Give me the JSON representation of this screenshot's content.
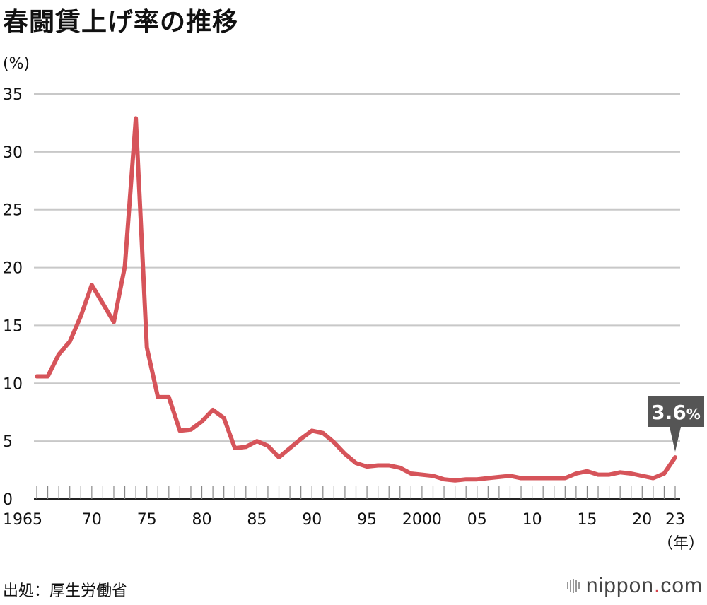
{
  "title": "春闘賃上げ率の推移",
  "y_unit": "(%)",
  "x_unit": "（年）",
  "source": "出処：厚生労働省",
  "logo": {
    "text": "nippon",
    "dot": ".",
    "suffix": "com"
  },
  "callout": {
    "text": "3.6",
    "unit": "%",
    "color": "#555555"
  },
  "colors": {
    "line": "#d6545a",
    "grid": "#c8c8c8",
    "axis": "#222222"
  },
  "chart_data": {
    "type": "line",
    "title": "春闘賃上げ率の推移",
    "ylabel": "(%)",
    "xlabel": "（年）",
    "ylim": [
      0,
      35
    ],
    "xlim": [
      1965,
      2023
    ],
    "grid": true,
    "y_ticks": [
      0,
      5,
      10,
      15,
      20,
      25,
      30,
      35
    ],
    "x_ticks": [
      {
        "year": 1965,
        "label": "1965"
      },
      {
        "year": 1970,
        "label": "70"
      },
      {
        "year": 1975,
        "label": "75"
      },
      {
        "year": 1980,
        "label": "80"
      },
      {
        "year": 1985,
        "label": "85"
      },
      {
        "year": 1990,
        "label": "90"
      },
      {
        "year": 1995,
        "label": "95"
      },
      {
        "year": 2000,
        "label": "2000"
      },
      {
        "year": 2005,
        "label": "05"
      },
      {
        "year": 2010,
        "label": "10"
      },
      {
        "year": 2015,
        "label": "15"
      },
      {
        "year": 2020,
        "label": "20"
      },
      {
        "year": 2023,
        "label": "23"
      }
    ],
    "x": [
      1965,
      1966,
      1967,
      1968,
      1969,
      1970,
      1971,
      1972,
      1973,
      1974,
      1975,
      1976,
      1977,
      1978,
      1979,
      1980,
      1981,
      1982,
      1983,
      1984,
      1985,
      1986,
      1987,
      1988,
      1989,
      1990,
      1991,
      1992,
      1993,
      1994,
      1995,
      1996,
      1997,
      1998,
      1999,
      2000,
      2001,
      2002,
      2003,
      2004,
      2005,
      2006,
      2007,
      2008,
      2009,
      2010,
      2011,
      2012,
      2013,
      2014,
      2015,
      2016,
      2017,
      2018,
      2019,
      2020,
      2021,
      2022,
      2023
    ],
    "series": [
      {
        "values": [
          10.6,
          10.6,
          12.5,
          13.6,
          15.8,
          18.5,
          16.9,
          15.3,
          20.1,
          32.9,
          13.1,
          8.8,
          8.8,
          5.9,
          6.0,
          6.7,
          7.7,
          7.0,
          4.4,
          4.5,
          5.0,
          4.6,
          3.6,
          4.4,
          5.2,
          5.9,
          5.7,
          4.9,
          3.9,
          3.1,
          2.8,
          2.9,
          2.9,
          2.7,
          2.2,
          2.1,
          2.0,
          1.7,
          1.6,
          1.7,
          1.7,
          1.8,
          1.9,
          2.0,
          1.8,
          1.8,
          1.8,
          1.8,
          1.8,
          2.2,
          2.4,
          2.1,
          2.1,
          2.3,
          2.2,
          2.0,
          1.8,
          2.2,
          3.6
        ]
      }
    ]
  }
}
